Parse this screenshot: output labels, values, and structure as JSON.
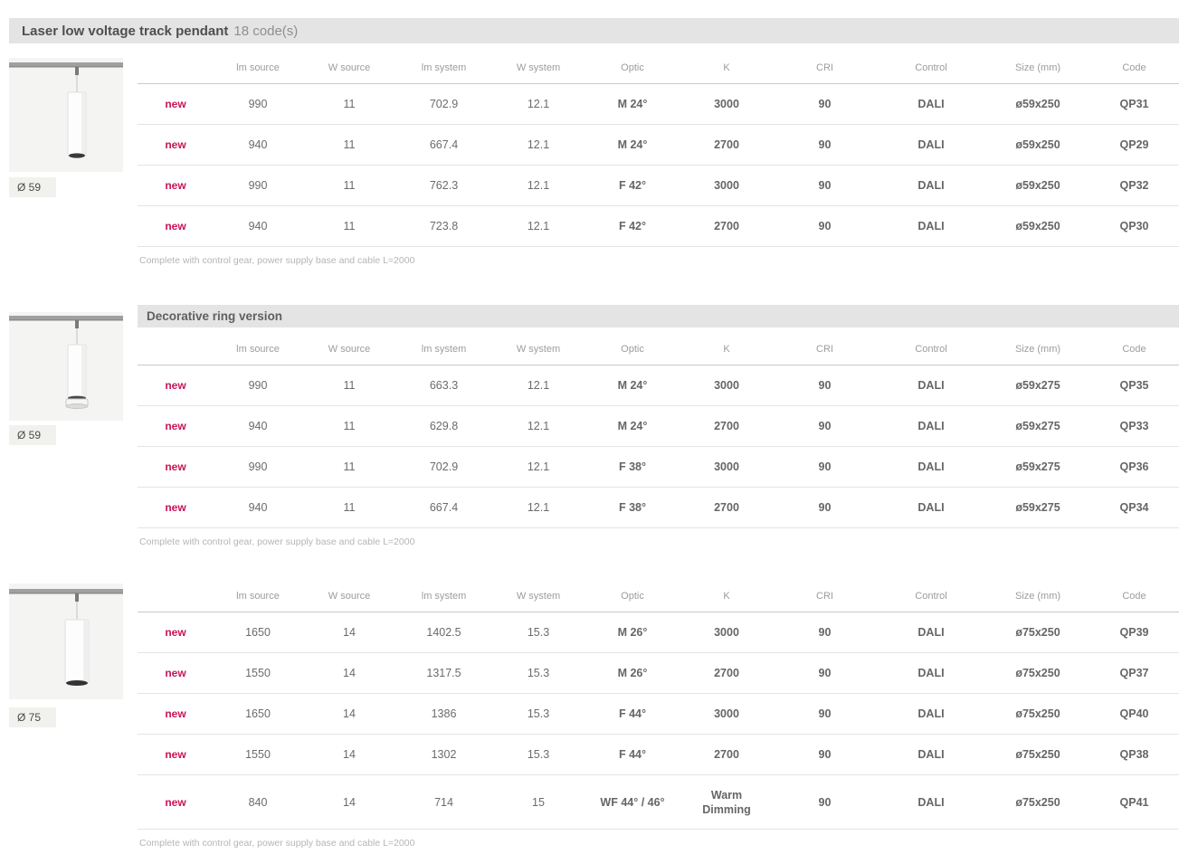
{
  "page": {
    "title": "Laser low voltage track pendant",
    "code_count": "18 code(s)"
  },
  "columns": [
    {
      "key": "badge",
      "label": ""
    },
    {
      "key": "lm_source",
      "label": "lm source"
    },
    {
      "key": "w_source",
      "label": "W source"
    },
    {
      "key": "lm_system",
      "label": "lm system"
    },
    {
      "key": "w_system",
      "label": "W system"
    },
    {
      "key": "optic",
      "label": "Optic"
    },
    {
      "key": "k",
      "label": "K"
    },
    {
      "key": "cri",
      "label": "CRI"
    },
    {
      "key": "control",
      "label": "Control"
    },
    {
      "key": "size",
      "label": "Size (mm)"
    },
    {
      "key": "code",
      "label": "Code"
    }
  ],
  "footnote": "Complete with control gear, power supply base and cable L=2000",
  "sections": [
    {
      "header": "",
      "image_label": "Ø 59",
      "rows": [
        {
          "badge": "new",
          "lm_source": "990",
          "w_source": "11",
          "lm_system": "702.9",
          "w_system": "12.1",
          "optic": "M 24°",
          "k": "3000",
          "cri": "90",
          "control": "DALI",
          "size": "ø59x250",
          "code": "QP31"
        },
        {
          "badge": "new",
          "lm_source": "940",
          "w_source": "11",
          "lm_system": "667.4",
          "w_system": "12.1",
          "optic": "M 24°",
          "k": "2700",
          "cri": "90",
          "control": "DALI",
          "size": "ø59x250",
          "code": "QP29"
        },
        {
          "badge": "new",
          "lm_source": "990",
          "w_source": "11",
          "lm_system": "762.3",
          "w_system": "12.1",
          "optic": "F 42°",
          "k": "3000",
          "cri": "90",
          "control": "DALI",
          "size": "ø59x250",
          "code": "QP32"
        },
        {
          "badge": "new",
          "lm_source": "940",
          "w_source": "11",
          "lm_system": "723.8",
          "w_system": "12.1",
          "optic": "F 42°",
          "k": "2700",
          "cri": "90",
          "control": "DALI",
          "size": "ø59x250",
          "code": "QP30"
        }
      ]
    },
    {
      "header": "Decorative ring version",
      "image_label": "Ø 59",
      "rows": [
        {
          "badge": "new",
          "lm_source": "990",
          "w_source": "11",
          "lm_system": "663.3",
          "w_system": "12.1",
          "optic": "M 24°",
          "k": "3000",
          "cri": "90",
          "control": "DALI",
          "size": "ø59x275",
          "code": "QP35"
        },
        {
          "badge": "new",
          "lm_source": "940",
          "w_source": "11",
          "lm_system": "629.8",
          "w_system": "12.1",
          "optic": "M 24°",
          "k": "2700",
          "cri": "90",
          "control": "DALI",
          "size": "ø59x275",
          "code": "QP33"
        },
        {
          "badge": "new",
          "lm_source": "990",
          "w_source": "11",
          "lm_system": "702.9",
          "w_system": "12.1",
          "optic": "F 38°",
          "k": "3000",
          "cri": "90",
          "control": "DALI",
          "size": "ø59x275",
          "code": "QP36"
        },
        {
          "badge": "new",
          "lm_source": "940",
          "w_source": "11",
          "lm_system": "667.4",
          "w_system": "12.1",
          "optic": "F 38°",
          "k": "2700",
          "cri": "90",
          "control": "DALI",
          "size": "ø59x275",
          "code": "QP34"
        }
      ]
    },
    {
      "header": "",
      "image_label": "Ø 75",
      "rows": [
        {
          "badge": "new",
          "lm_source": "1650",
          "w_source": "14",
          "lm_system": "1402.5",
          "w_system": "15.3",
          "optic": "M 26°",
          "k": "3000",
          "cri": "90",
          "control": "DALI",
          "size": "ø75x250",
          "code": "QP39"
        },
        {
          "badge": "new",
          "lm_source": "1550",
          "w_source": "14",
          "lm_system": "1317.5",
          "w_system": "15.3",
          "optic": "M 26°",
          "k": "2700",
          "cri": "90",
          "control": "DALI",
          "size": "ø75x250",
          "code": "QP37"
        },
        {
          "badge": "new",
          "lm_source": "1650",
          "w_source": "14",
          "lm_system": "1386",
          "w_system": "15.3",
          "optic": "F 44°",
          "k": "3000",
          "cri": "90",
          "control": "DALI",
          "size": "ø75x250",
          "code": "QP40"
        },
        {
          "badge": "new",
          "lm_source": "1550",
          "w_source": "14",
          "lm_system": "1302",
          "w_system": "15.3",
          "optic": "F 44°",
          "k": "2700",
          "cri": "90",
          "control": "DALI",
          "size": "ø75x250",
          "code": "QP38"
        },
        {
          "badge": "new",
          "lm_source": "840",
          "w_source": "14",
          "lm_system": "714",
          "w_system": "15",
          "optic": "WF 44° / 46°",
          "k": "Warm Dimming",
          "cri": "90",
          "control": "DALI",
          "size": "ø75x250",
          "code": "QP41"
        }
      ]
    }
  ],
  "colors": {
    "accent_new": "#c81458",
    "header_bar_bg": "#e4e4e4",
    "body_text": "#6b6b6b",
    "column_header_text": "#9c9c9c",
    "row_border": "#e4e4e4",
    "image_bg": "#f4f4f2",
    "footnote_text": "#b5b5b5"
  }
}
